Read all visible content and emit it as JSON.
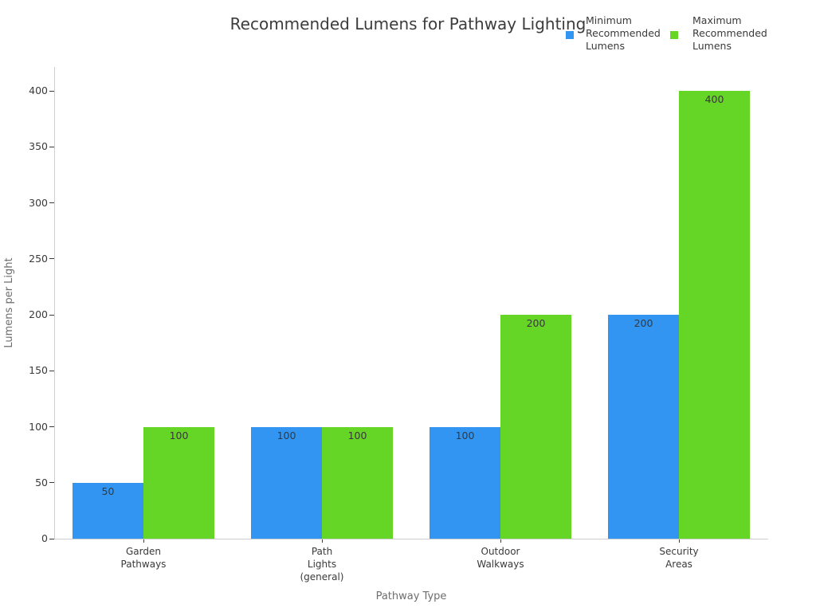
{
  "chart_data": {
    "type": "bar",
    "title": "Recommended Lumens for Pathway Lighting",
    "xlabel": "Pathway Type",
    "ylabel": "Lumens per Light",
    "categories": [
      "Garden\nPathways",
      "Path\nLights\n(general)",
      "Outdoor\nWalkways",
      "Security\nAreas"
    ],
    "series": [
      {
        "name": "Minimum\nRecommended\nLumens",
        "color": "#3195F1",
        "values": [
          50,
          100,
          100,
          200
        ]
      },
      {
        "name": "Maximum\nRecommended\nLumens",
        "color": "#66D626",
        "values": [
          100,
          100,
          200,
          400
        ]
      }
    ],
    "ylim": [
      0,
      400
    ],
    "ytick_step": 50,
    "yticks": [
      0,
      50,
      100,
      150,
      200,
      250,
      300,
      350,
      400
    ],
    "grid": false,
    "legend_position": "top-right",
    "bar_value_labels": [
      {
        "category": "Garden\nPathways",
        "min": "50",
        "max": "100"
      },
      {
        "category": "Path\nLights\n(general)",
        "min": "100",
        "max": "100"
      },
      {
        "category": "Outdoor\nWalkways",
        "min": "100",
        "max": "200"
      },
      {
        "category": "Security\nAreas",
        "min": "200",
        "max": "400"
      }
    ],
    "colors": {
      "title": "#3c3c3c",
      "tick_label": "#3a3a3a",
      "axis_title": "#6e6e6e",
      "spine": "#cfcfcf",
      "tick_mark": "#3a3a3a",
      "value_label": "#383838",
      "background": "#ffffff"
    }
  }
}
